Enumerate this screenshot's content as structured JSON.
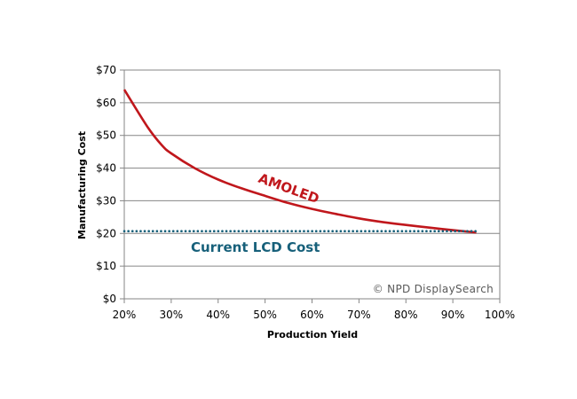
{
  "chart_data": {
    "type": "line",
    "xlabel": "Production Yield",
    "ylabel": "Manufacturing Cost",
    "x_ticks": [
      "20%",
      "30%",
      "40%",
      "50%",
      "60%",
      "70%",
      "80%",
      "90%",
      "100%"
    ],
    "y_ticks": [
      "$0",
      "$10",
      "$20",
      "$30",
      "$40",
      "$50",
      "$60",
      "$70"
    ],
    "xlim": [
      20,
      100
    ],
    "ylim": [
      0,
      70
    ],
    "grid": "horizontal",
    "series": [
      {
        "name": "AMOLED",
        "color": "#c0171c",
        "style": "solid",
        "x": [
          20,
          25,
          28,
          30,
          35,
          40,
          45,
          50,
          55,
          60,
          65,
          70,
          75,
          80,
          85,
          90,
          95
        ],
        "y": [
          64,
          52.5,
          47,
          44.5,
          40,
          36.5,
          33.8,
          31.5,
          29.3,
          27.5,
          26,
          24.6,
          23.5,
          22.6,
          21.8,
          21,
          20.3
        ]
      },
      {
        "name": "Current LCD Cost",
        "color": "#17607a",
        "style": "dotted",
        "x": [
          20,
          95
        ],
        "y": [
          20.7,
          20.7
        ]
      }
    ],
    "watermark": "©  NPD  DisplaySearch"
  }
}
